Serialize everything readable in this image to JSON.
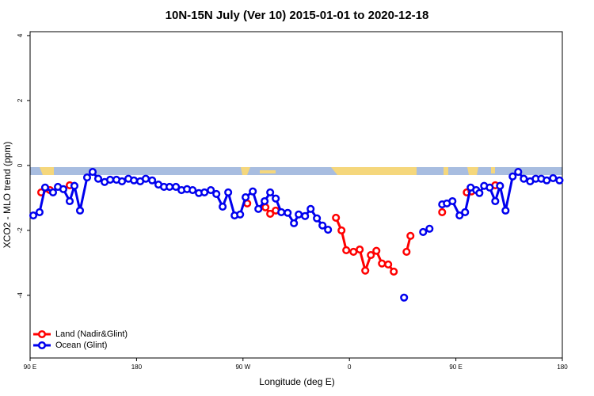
{
  "chart_data": {
    "type": "line",
    "title": "10N-15N July (Ver 10)   2015-01-01 to 2020-12-18",
    "xlabel": "Longitude (deg E)",
    "ylabel": "XCO2 - MLO trend (ppm)",
    "xlim": [
      90,
      540
    ],
    "ylim": [
      -5.93,
      4.12
    ],
    "xticks": [
      {
        "value": 90,
        "label": "90 E"
      },
      180,
      {
        "value": 270,
        "label": "90 W"
      },
      {
        "value": 360,
        "label": "0"
      },
      {
        "value": 450,
        "label": "90 E"
      },
      {
        "value": 540,
        "label": "180"
      }
    ],
    "yticks": [
      4,
      2,
      0,
      -2,
      -4
    ],
    "legend": "bottomleft",
    "series": [
      {
        "name": "Land (Nadir&Glint)",
        "color": "#ff0000",
        "x": [
          99.4,
          106.8,
          null,
          123.5,
          null,
          273.6,
          null,
          289.0,
          293.0,
          297.7,
          null,
          348.6,
          353.3,
          357.3,
          363.4,
          368.7,
          373.4,
          378.1,
          382.8,
          387.5,
          392.8,
          397.5,
          null,
          408.3,
          411.6,
          null,
          438.4,
          null,
          459.2,
          463.2,
          null,
          483.3
        ],
        "values": [
          -0.83,
          -0.76,
          null,
          -0.61,
          null,
          -1.17,
          null,
          -1.29,
          -1.49,
          -1.39,
          null,
          -1.61,
          -2.0,
          -2.61,
          -2.66,
          -2.59,
          -3.24,
          -2.76,
          -2.63,
          -3.02,
          -3.05,
          -3.27,
          null,
          -2.66,
          -2.17,
          null,
          -1.44,
          null,
          -0.83,
          -0.8,
          null,
          -0.61
        ]
      },
      {
        "name": "Ocean (Glint)",
        "color": "#0000ee",
        "x": [
          92.7,
          98.0,
          102.7,
          109.4,
          113.5,
          118.1,
          123.5,
          127.5,
          132.2,
          138.2,
          142.9,
          147.6,
          153.0,
          157.7,
          163.0,
          167.7,
          173.1,
          177.8,
          183.1,
          187.8,
          193.2,
          198.5,
          203.2,
          207.9,
          213.3,
          218.0,
          222.7,
          227.4,
          232.7,
          237.4,
          242.8,
          247.5,
          252.8,
          257.5,
          262.9,
          267.6,
          272.2,
          278.3,
          283.0,
          288.3,
          293.0,
          297.7,
          302.4,
          307.8,
          313.1,
          317.1,
          322.5,
          327.2,
          332.5,
          337.2,
          341.9,
          null,
          406.2,
          null,
          422.3,
          427.7,
          null,
          438.4,
          442.4,
          447.1,
          453.1,
          457.8,
          462.5,
          467.2,
          469.9,
          473.9,
          478.6,
          483.3,
          487.3,
          492.0,
          498.0,
          502.7,
          507.4,
          512.8,
          517.5,
          522.2,
          526.8,
          532.2,
          537.6
        ],
        "values": [
          -1.54,
          -1.44,
          -0.68,
          -0.83,
          -0.66,
          -0.73,
          -1.1,
          -0.63,
          -1.39,
          -0.37,
          -0.2,
          -0.41,
          -0.51,
          -0.44,
          -0.44,
          -0.49,
          -0.41,
          -0.46,
          -0.49,
          -0.41,
          -0.46,
          -0.59,
          -0.66,
          -0.66,
          -0.66,
          -0.76,
          -0.73,
          -0.76,
          -0.85,
          -0.83,
          -0.76,
          -0.88,
          -1.27,
          -0.83,
          -1.54,
          -1.51,
          -0.98,
          -0.8,
          -1.34,
          -1.1,
          -0.83,
          -1.02,
          -1.44,
          -1.46,
          -1.78,
          -1.51,
          -1.56,
          -1.34,
          -1.63,
          -1.85,
          -1.98,
          null,
          -4.07,
          null,
          -2.05,
          -1.95,
          null,
          -1.2,
          -1.17,
          -1.1,
          -1.54,
          -1.44,
          -0.68,
          -0.76,
          -0.85,
          -0.63,
          -0.68,
          -1.1,
          -0.63,
          -1.39,
          -0.34,
          -0.2,
          -0.41,
          -0.49,
          -0.41,
          -0.41,
          -0.46,
          -0.39,
          -0.46
        ]
      }
    ]
  }
}
